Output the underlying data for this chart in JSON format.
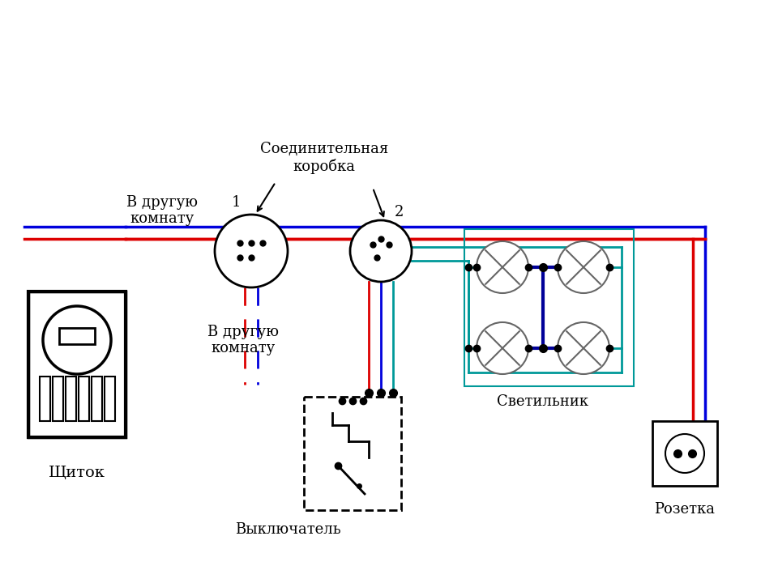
{
  "bg_color": "#ffffff",
  "wire_red": "#dd0000",
  "wire_blue": "#0000dd",
  "wire_green": "#009999",
  "wire_dkblue": "#000099",
  "lw": 2.0,
  "label_title": "Соединительная\nкоробка",
  "label_1": "1",
  "label_2": "2",
  "label_shield": "Щиток",
  "label_switch": "Выключатель",
  "label_socket": "Розетка",
  "label_lamp": "Светильник",
  "label_room1": "В другую\nкомнату",
  "label_room2": "В другую\nкомнату"
}
